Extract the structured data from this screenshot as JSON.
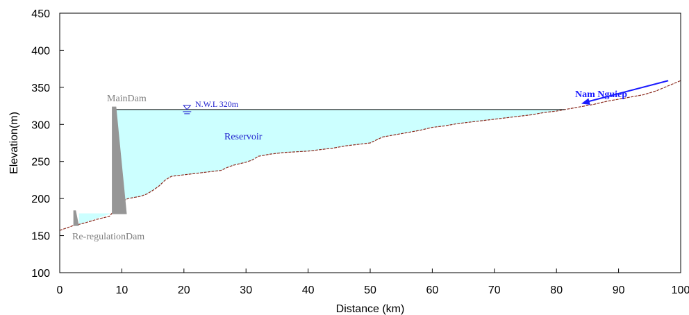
{
  "chart_data": {
    "type": "area",
    "title": "",
    "xlabel": "Distance (km)",
    "ylabel": "Elevation(m)",
    "xlim": [
      0,
      100
    ],
    "ylim": [
      100,
      450
    ],
    "xticks": [
      0,
      10,
      20,
      30,
      40,
      50,
      60,
      70,
      80,
      90,
      100
    ],
    "yticks": [
      100,
      150,
      200,
      250,
      300,
      350,
      400,
      450
    ],
    "grid": false,
    "colors": {
      "water": "#ccffff",
      "dam": "#969696",
      "riverbed": "#8b2a1e",
      "river_arrow": "#1a1aff",
      "label_gray": "#7f7f7f",
      "label_blue": "#1a1acc"
    },
    "series": [
      {
        "values_x": [
          0,
          2,
          4,
          6,
          8,
          9,
          10,
          11,
          13,
          14,
          15,
          16,
          17,
          18,
          20,
          22,
          24,
          26,
          27,
          28,
          30,
          31,
          32,
          34,
          36,
          38,
          40,
          42,
          44,
          46,
          48,
          50,
          51,
          52,
          54,
          56,
          58,
          60,
          62,
          64,
          66,
          68,
          70,
          72,
          74,
          76,
          78,
          80,
          82,
          84,
          86,
          88,
          90,
          92,
          94,
          96,
          98,
          100
        ],
        "values_y": [
          157,
          163,
          167,
          172,
          176,
          186,
          196,
          200,
          203,
          206,
          211,
          217,
          225,
          230,
          232,
          234,
          236,
          238,
          242,
          245,
          249,
          252,
          257,
          260,
          262,
          263,
          264,
          266,
          268,
          271,
          273,
          275,
          279,
          283,
          286,
          289,
          292,
          296,
          298,
          301,
          303,
          305,
          307,
          309,
          311,
          313,
          316,
          318,
          321,
          324,
          327,
          331,
          334,
          337,
          340,
          345,
          352,
          359
        ]
      }
    ],
    "water_level": 320,
    "main_dam": {
      "x_start": 8.4,
      "x_end": 10.8,
      "crest": 324,
      "base": 179
    },
    "rereg_dam": {
      "x_start": 2.2,
      "x_end": 3.1,
      "crest": 184,
      "base": 163
    },
    "rereg_pool": {
      "x_end": 8.4,
      "level": 180
    },
    "annotations": {
      "main_dam": "MainDam",
      "rereg_dam": "Re-regulationDam",
      "nwl": "N.W.L 320m",
      "reservoir": "Reservoir",
      "river": "Nam Nguiep"
    }
  }
}
